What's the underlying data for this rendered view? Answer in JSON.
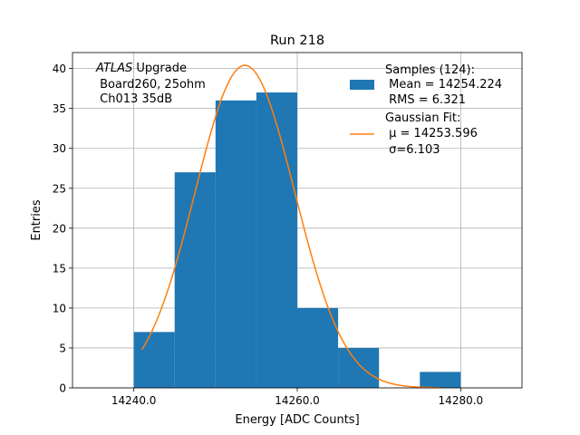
{
  "chart_data": {
    "type": "bar",
    "title": "Run 218",
    "xlabel": "Energy [ADC Counts]",
    "ylabel": "Entries",
    "xlim": [
      14232.5,
      14287.5
    ],
    "ylim": [
      0,
      42
    ],
    "grid": true,
    "xticks": [
      14240,
      14260,
      14280
    ],
    "xtick_labels": [
      "14240.0",
      "14260.0",
      "14280.0"
    ],
    "yticks": [
      0,
      5,
      10,
      15,
      20,
      25,
      30,
      35,
      40
    ],
    "ytick_labels": [
      "0",
      "5",
      "10",
      "15",
      "20",
      "25",
      "30",
      "35",
      "40"
    ],
    "bins": [
      {
        "x0": 14240,
        "x1": 14245,
        "count": 7
      },
      {
        "x0": 14245,
        "x1": 14250,
        "count": 27
      },
      {
        "x0": 14250,
        "x1": 14255,
        "count": 36
      },
      {
        "x0": 14255,
        "x1": 14260,
        "count": 37
      },
      {
        "x0": 14260,
        "x1": 14265,
        "count": 10
      },
      {
        "x0": 14265,
        "x1": 14270,
        "count": 5
      },
      {
        "x0": 14270,
        "x1": 14275,
        "count": 0
      },
      {
        "x0": 14275,
        "x1": 14280,
        "count": 2
      }
    ],
    "fit": {
      "mu": 14253.596,
      "sigma": 6.103,
      "amplitude": 40.4,
      "x_from": 14241,
      "x_to": 14277.5
    },
    "colors": {
      "hist": "#1f77b4",
      "fit": "#ff7f0e",
      "grid": "#b0b0b0"
    },
    "annotation": {
      "line1_italic": "ATLAS",
      "line1_rest": " Upgrade",
      "line2": " Board260, 25ohm",
      "line3": " Ch013 35dB"
    },
    "legend": {
      "placement": "top-right",
      "hist_lines": [
        "Samples (124):",
        " Mean = 14254.224",
        " RMS = 6.321"
      ],
      "fit_lines": [
        "Gaussian Fit:",
        " μ = 14253.596",
        " σ=6.103"
      ]
    }
  }
}
